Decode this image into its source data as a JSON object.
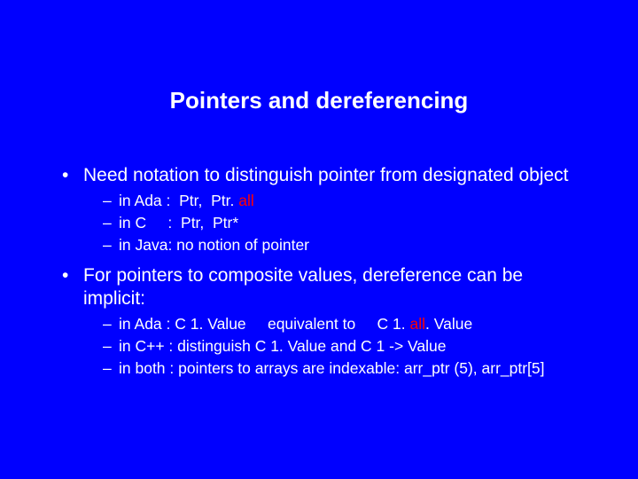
{
  "colors": {
    "background": "#0000ff",
    "text": "#ffffff",
    "keyword": "#ff0000"
  },
  "typography": {
    "title_fontsize": 26,
    "level1_fontsize": 21,
    "level2_fontsize": 17.5,
    "font_family": "Arial"
  },
  "title": "Pointers and dereferencing",
  "bullets": {
    "b1": "Need notation to distinguish pointer from designated object",
    "b1_subs": {
      "s1_a": "in Ada :  Ptr,  Ptr. ",
      "s1_b": "all",
      "s2": "in C     :  Ptr,  Ptr*",
      "s3": "in Java: no notion of pointer"
    },
    "b2": "For pointers to composite values, dereference can be implicit:",
    "b2_subs": {
      "s1_a": "in Ada : C 1. Value     equivalent to     C 1. ",
      "s1_b": "all",
      "s1_c": ". Value",
      "s2": "in C++ : distinguish C 1. Value and C 1 -> Value",
      "s3": "in both : pointers to arrays are indexable:  arr_ptr (5), arr_ptr[5]"
    }
  }
}
